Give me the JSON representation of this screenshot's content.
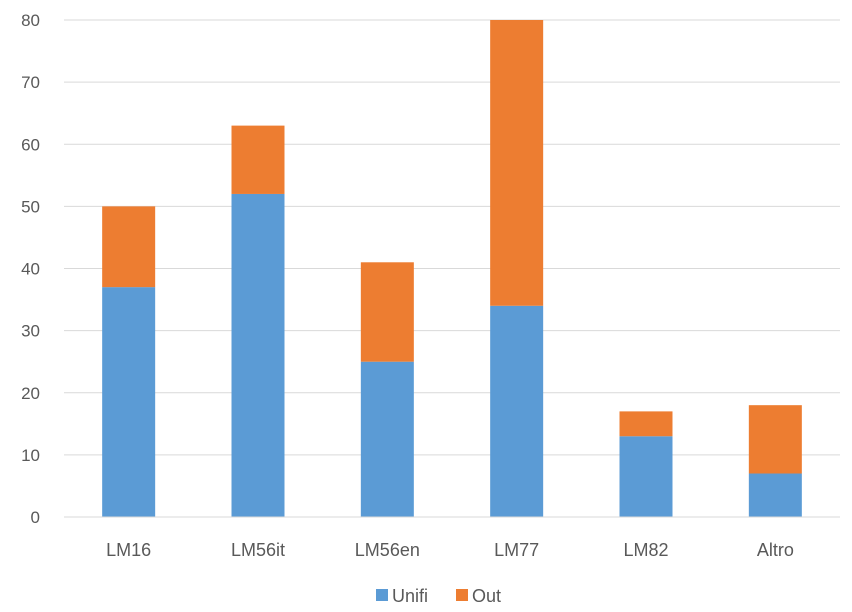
{
  "chart_data": {
    "type": "bar",
    "stacked": true,
    "title": "",
    "xlabel": "",
    "ylabel": "",
    "categories": [
      "LM16",
      "LM56it",
      "LM56en",
      "LM77",
      "LM82",
      "Altro"
    ],
    "series": [
      {
        "name": "Unifi",
        "color": "#5b9bd5",
        "values": [
          37,
          52,
          25,
          34,
          13,
          7
        ]
      },
      {
        "name": "Out",
        "color": "#ed7d31",
        "values": [
          13,
          11,
          16,
          46,
          4,
          11
        ]
      }
    ],
    "ylim": [
      0,
      80
    ],
    "yticks": [
      "0",
      "10",
      "20",
      "30",
      "40",
      "50",
      "60",
      "70",
      "80"
    ],
    "grid": true,
    "legend_position": "bottom"
  }
}
